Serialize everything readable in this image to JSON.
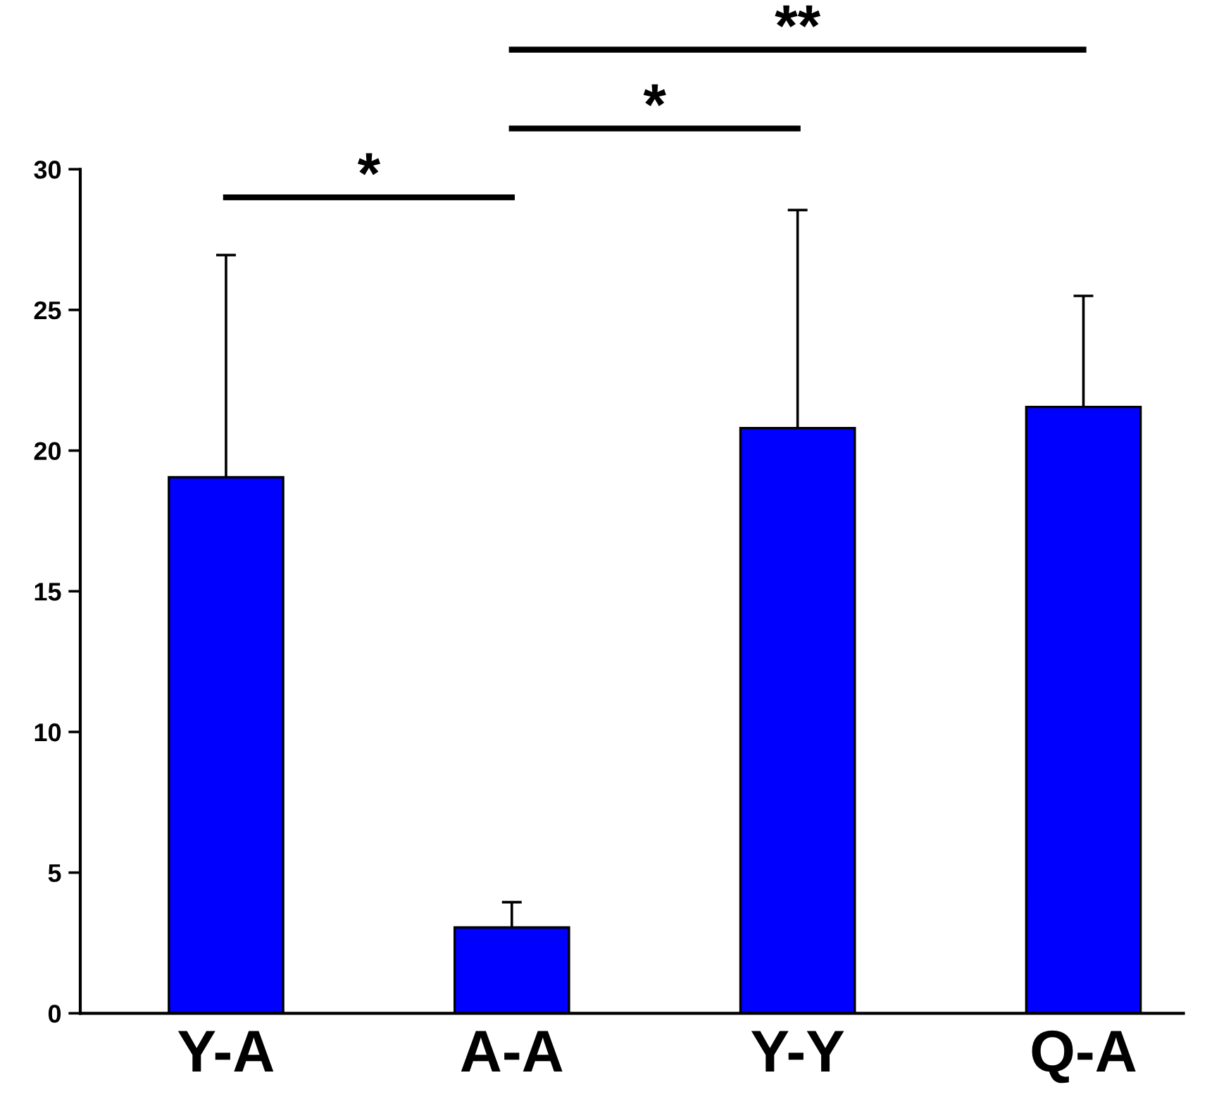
{
  "chart_data": {
    "type": "bar",
    "categories": [
      "Y-A",
      "A-A",
      "Y-Y",
      "Q-A"
    ],
    "values": [
      19.05,
      3.05,
      20.8,
      21.55
    ],
    "errors": [
      [
        19.05,
        26.95
      ],
      [
        3.05,
        3.95
      ],
      [
        20.8,
        28.55
      ],
      [
        21.55,
        25.5
      ]
    ],
    "color": "#0000ff",
    "ylim": [
      0,
      30
    ],
    "yticks": [
      0,
      5,
      10,
      15,
      20,
      25,
      30
    ],
    "grid": false,
    "legend": false,
    "annotations": [
      "*",
      "*",
      "**"
    ]
  }
}
